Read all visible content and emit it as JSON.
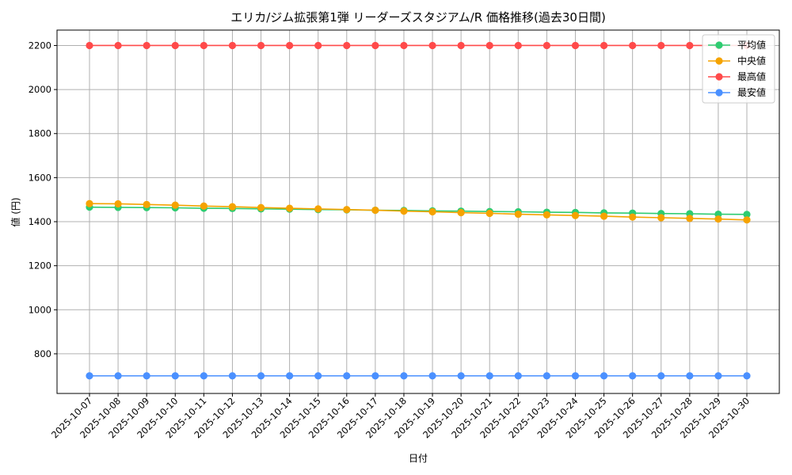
{
  "chart_data": {
    "type": "line",
    "title": "エリカ/ジム拡張第1弾 リーダーズスタジアム/R 価格推移(過去30日間)",
    "xlabel": "日付",
    "ylabel": "値 (円)",
    "categories": [
      "2025-10-07",
      "2025-10-08",
      "2025-10-09",
      "2025-10-10",
      "2025-10-11",
      "2025-10-12",
      "2025-10-13",
      "2025-10-14",
      "2025-10-15",
      "2025-10-16",
      "2025-10-17",
      "2025-10-18",
      "2025-10-19",
      "2025-10-20",
      "2025-10-21",
      "2025-10-22",
      "2025-10-23",
      "2025-10-24",
      "2025-10-25",
      "2025-10-26",
      "2025-10-27",
      "2025-10-28",
      "2025-10-29",
      "2025-10-30"
    ],
    "ylim": [
      620,
      2270
    ],
    "yticks": [
      800,
      1000,
      1200,
      1400,
      1600,
      1800,
      2000,
      2200
    ],
    "grid": true,
    "legend_position": "top-right",
    "series": [
      {
        "name": "平均値",
        "color": "#2ecc71",
        "values": [
          1466,
          1465,
          1464,
          1463,
          1461,
          1460,
          1458,
          1457,
          1455,
          1454,
          1452,
          1451,
          1449,
          1448,
          1446,
          1445,
          1443,
          1442,
          1440,
          1439,
          1437,
          1436,
          1434,
          1433
        ]
      },
      {
        "name": "中央値",
        "color": "#f5a300",
        "values": [
          1482,
          1481,
          1478,
          1475,
          1471,
          1468,
          1464,
          1461,
          1458,
          1455,
          1452,
          1448,
          1445,
          1441,
          1438,
          1434,
          1431,
          1428,
          1425,
          1421,
          1418,
          1415,
          1412,
          1408
        ]
      },
      {
        "name": "最高値",
        "color": "#ff4a4a",
        "values": [
          2200,
          2200,
          2200,
          2200,
          2200,
          2200,
          2200,
          2200,
          2200,
          2200,
          2200,
          2200,
          2200,
          2200,
          2200,
          2200,
          2200,
          2200,
          2200,
          2200,
          2200,
          2200,
          2200,
          2200
        ]
      },
      {
        "name": "最安値",
        "color": "#4a90ff",
        "values": [
          700,
          700,
          700,
          700,
          700,
          700,
          700,
          700,
          700,
          700,
          700,
          700,
          700,
          700,
          700,
          700,
          700,
          700,
          700,
          700,
          700,
          700,
          700,
          700
        ]
      }
    ]
  }
}
